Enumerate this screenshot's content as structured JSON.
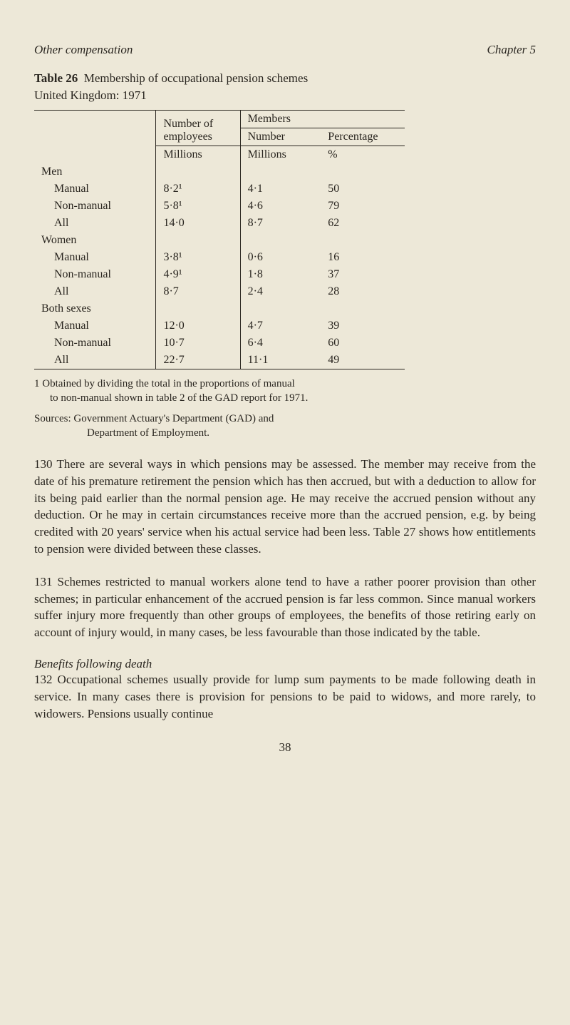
{
  "header": {
    "left": "Other compensation",
    "right": "Chapter 5"
  },
  "table": {
    "title_prefix": "Table 26",
    "title_text": "Membership of occupational pension schemes",
    "subtitle": "United Kingdom: 1971",
    "col_headers": {
      "employees": "Number of employees",
      "members": "Members",
      "number": "Number",
      "percentage": "Percentage",
      "millions1": "Millions",
      "millions2": "Millions",
      "pct_symbol": "%"
    },
    "groups": [
      {
        "label": "Men",
        "rows": [
          {
            "label": "Manual",
            "emp": "8·2¹",
            "num": "4·1",
            "pct": "50"
          },
          {
            "label": "Non-manual",
            "emp": "5·8¹",
            "num": "4·6",
            "pct": "79"
          },
          {
            "label": "All",
            "emp": "14·0",
            "num": "8·7",
            "pct": "62"
          }
        ]
      },
      {
        "label": "Women",
        "rows": [
          {
            "label": "Manual",
            "emp": "3·8¹",
            "num": "0·6",
            "pct": "16"
          },
          {
            "label": "Non-manual",
            "emp": "4·9¹",
            "num": "1·8",
            "pct": "37"
          },
          {
            "label": "All",
            "emp": "8·7",
            "num": "2·4",
            "pct": "28"
          }
        ]
      },
      {
        "label": "Both sexes",
        "rows": [
          {
            "label": "Manual",
            "emp": "12·0",
            "num": "4·7",
            "pct": "39"
          },
          {
            "label": "Non-manual",
            "emp": "10·7",
            "num": "6·4",
            "pct": "60"
          },
          {
            "label": "All",
            "emp": "22·7",
            "num": "11·1",
            "pct": "49"
          }
        ]
      }
    ],
    "footnote_num": "1",
    "footnote_text_line1": "Obtained by dividing the total in the proportions of manual",
    "footnote_text_line2": "to non-manual shown in table 2 of the GAD report for 1971.",
    "sources_line1": "Sources: Government Actuary's Department (GAD) and",
    "sources_line2": "Department of Employment."
  },
  "paragraphs": {
    "p130": "130   There are several ways in which pensions may be assessed. The member may receive from the date of his premature retirement the pension which has then accrued, but with a deduction to allow for its being paid earlier than the normal pension age. He may receive the accrued pension without any deduction. Or he may in certain circumstances receive more than the accrued pension, e.g. by being credited with 20 years' service when his actual service had been less. Table 27 shows how entitlements to pension were divided between these classes.",
    "p131": "131   Schemes restricted to manual workers alone tend to have a rather poorer provision than other schemes; in particular enhancement of the accrued pension is far less common. Since manual workers suffer injury more frequently than other groups of employees, the benefits of those retiring early on account of injury would, in many cases, be less favourable than those indicated by the table.",
    "benefits_heading": "Benefits following death",
    "p132": "132   Occupational schemes usually provide for lump sum payments to be made following death in service. In many cases there is provision for pensions to be paid to widows, and more rarely, to widowers. Pensions usually continue"
  },
  "page_number": "38"
}
